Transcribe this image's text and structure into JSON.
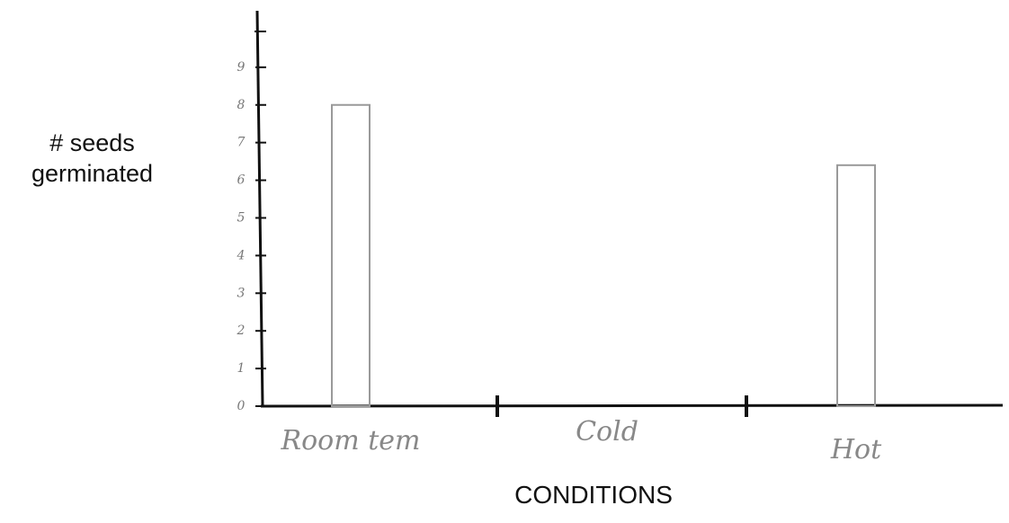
{
  "chart_data": {
    "type": "bar",
    "y_label": "# seeds germinated",
    "x_label": "CONDITIONS",
    "categories": [
      "Room tem",
      "Cold",
      "Hot"
    ],
    "values": [
      8,
      0,
      6.4
    ],
    "color": "#9a9a9a",
    "ylim": [
      0,
      10.5
    ],
    "yticks": [
      0,
      1,
      2,
      3,
      4,
      5,
      6,
      7,
      8,
      9
    ]
  }
}
